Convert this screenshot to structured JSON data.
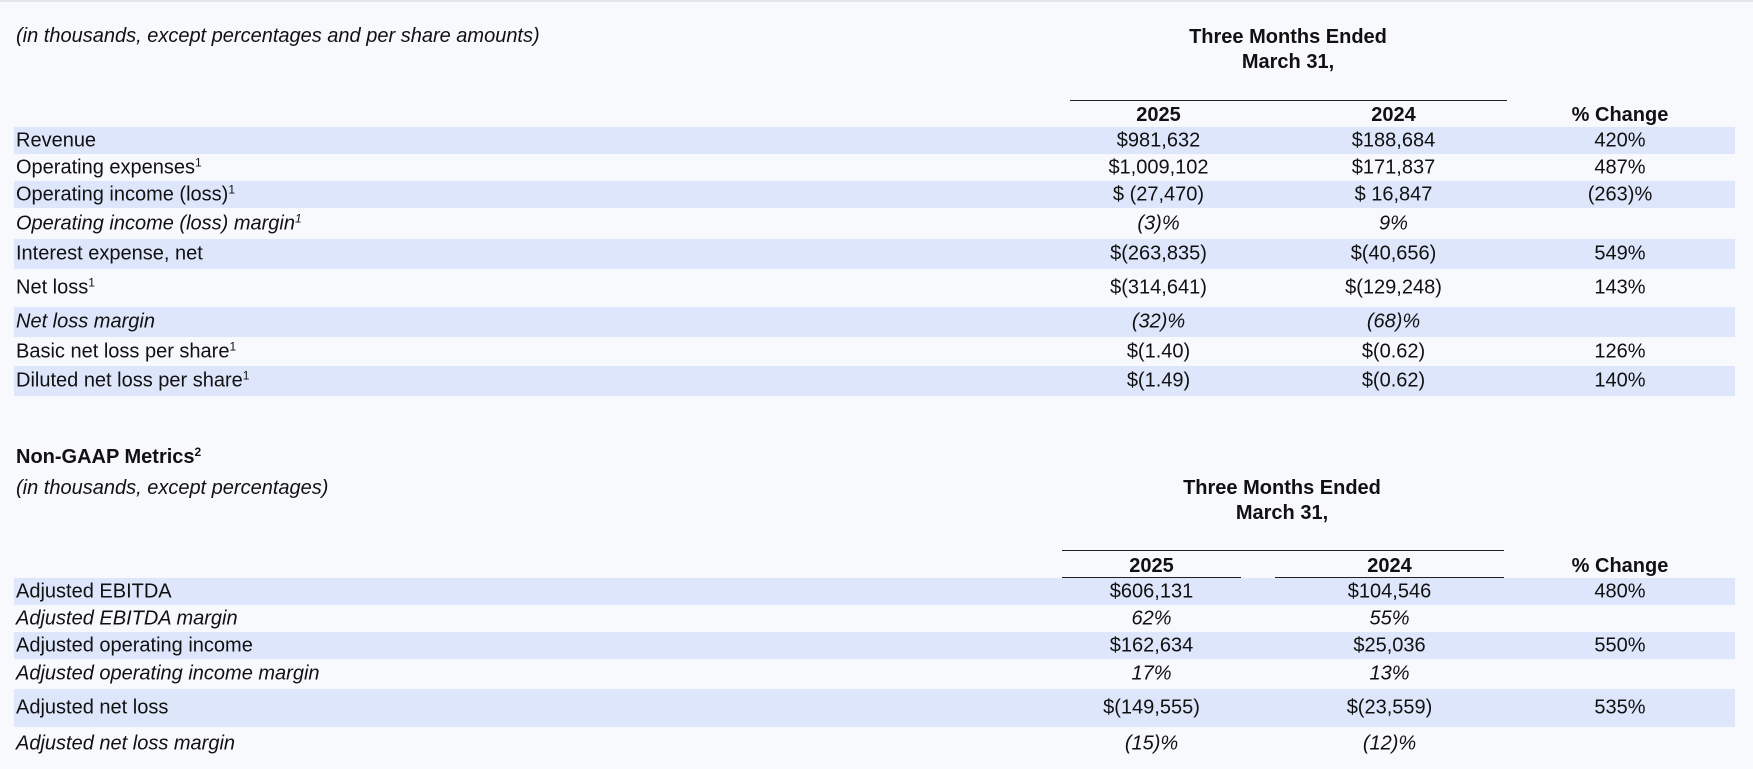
{
  "gaap": {
    "units_note": "(in thousands, except percentages and per share amounts)",
    "period_header": "Three Months  Ended",
    "period_header2": "March 31,",
    "col_2025": "2025",
    "col_2024": "2024",
    "col_change": "% Change",
    "rows": [
      {
        "label": "Revenue",
        "sup": "",
        "v2025": "$981,632",
        "v2024": "$188,684",
        "change": "420%"
      },
      {
        "label": "Operating expenses",
        "sup": "1",
        "v2025": "$1,009,102",
        "v2024": "$171,837",
        "change": "487%"
      },
      {
        "label": "Operating income (loss)",
        "sup": "1",
        "v2025": "$ (27,470)",
        "v2024": "$ 16,847",
        "change": "(263)%"
      },
      {
        "label": "Operating income (loss) margin",
        "sup": "1",
        "v2025": "(3)%",
        "v2024": "9%",
        "change": ""
      },
      {
        "label": "Interest expense, net",
        "sup": "",
        "v2025": "$(263,835)",
        "v2024": "$(40,656)",
        "change": "549%"
      },
      {
        "label": "Net loss",
        "sup": "1",
        "v2025": "$(314,641)",
        "v2024": "$(129,248)",
        "change": "143%"
      },
      {
        "label": "Net loss margin",
        "sup": "",
        "v2025": "(32)%",
        "v2024": "(68)%",
        "change": ""
      },
      {
        "label": "Basic net loss per share",
        "sup": "1",
        "v2025": "$(1.40)",
        "v2024": "$(0.62)",
        "change": "126%"
      },
      {
        "label": "Diluted net loss per share",
        "sup": "1",
        "v2025": "$(1.49)",
        "v2024": "$(0.62)",
        "change": "140%"
      }
    ]
  },
  "nongaap": {
    "title": "Non-GAAP Metrics",
    "title_sup": "2",
    "units_note": "(in thousands, except percentages)",
    "period_header": "Three Months  Ended",
    "period_header2": "March 31,",
    "col_2025": "2025",
    "col_2024": "2024",
    "col_change": "% Change",
    "rows": [
      {
        "label": "Adjusted EBITDA",
        "v2025": "$606,131",
        "v2024": "$104,546",
        "change": "480%"
      },
      {
        "label": "Adjusted EBITDA margin",
        "v2025": "62%",
        "v2024": "55%",
        "change": ""
      },
      {
        "label": "Adjusted operating income",
        "v2025": "$162,634",
        "v2024": "$25,036",
        "change": "550%"
      },
      {
        "label": "Adjusted operating income margin",
        "v2025": "17%",
        "v2024": "13%",
        "change": ""
      },
      {
        "label": "Adjusted net loss",
        "v2025": "$(149,555)",
        "v2024": "$(23,559)",
        "change": "535%"
      },
      {
        "label": "Adjusted net loss margin",
        "v2025": "(15)%",
        "v2024": "(12)%",
        "change": ""
      }
    ]
  }
}
